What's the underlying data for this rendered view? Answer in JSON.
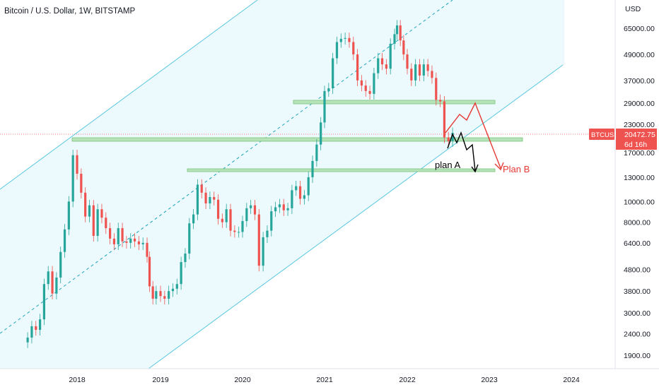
{
  "header": {
    "title": "Bitcoin / U.S. Dollar, 1W, BITSTAMP"
  },
  "colors": {
    "candle_up": "#26a69a",
    "candle_down": "#ef5350",
    "channel_line": "#5ac8e0",
    "channel_fill": "#eaf8fd",
    "zone_fill": "#b6e3b8",
    "zone_stroke": "#7cc47f",
    "plan_a": "#000000",
    "plan_b": "#e53935",
    "price_badge": "#ef5350",
    "price_line": "#ef5350"
  },
  "chart_data": {
    "type": "candlestick",
    "title": "Bitcoin / U.S. Dollar, 1W, BITSTAMP",
    "ylabel": "USD",
    "y_scale": "log",
    "y_ticks": [
      "65000.00",
      "49000.00",
      "37000.00",
      "29000.00",
      "23000.00",
      "17000.00",
      "13000.00",
      "10000.00",
      "8000.00",
      "6400.00",
      "4800.00",
      "3800.00",
      "3000.00",
      "2400.00",
      "1900.00"
    ],
    "x_ticks": [
      "2018",
      "2019",
      "2020",
      "2021",
      "2022",
      "2023",
      "2024"
    ],
    "x_range": [
      "2017-06",
      "2024-06"
    ],
    "y_range": [
      1600,
      80000
    ],
    "current_price": {
      "symbol": "BTCUSD",
      "value": "20472.75",
      "countdown": "6d 16h"
    },
    "series": [
      {
        "values": [
          [
            2017.4,
            2300
          ],
          [
            2017.45,
            2600
          ],
          [
            2017.5,
            2500
          ],
          [
            2017.55,
            2800
          ],
          [
            2017.6,
            4100
          ],
          [
            2017.65,
            4700
          ],
          [
            2017.7,
            3700
          ],
          [
            2017.75,
            4400
          ],
          [
            2017.8,
            5800
          ],
          [
            2017.85,
            7400
          ],
          [
            2017.9,
            10000
          ],
          [
            2017.95,
            16500
          ],
          [
            2018.0,
            13500
          ],
          [
            2018.05,
            11000
          ],
          [
            2018.1,
            8500
          ],
          [
            2018.15,
            9600
          ],
          [
            2018.2,
            6900
          ],
          [
            2018.25,
            9200
          ],
          [
            2018.3,
            8400
          ],
          [
            2018.35,
            7500
          ],
          [
            2018.4,
            6700
          ],
          [
            2018.45,
            6300
          ],
          [
            2018.5,
            7500
          ],
          [
            2018.55,
            6500
          ],
          [
            2018.6,
            6400
          ],
          [
            2018.65,
            6700
          ],
          [
            2018.7,
            6500
          ],
          [
            2018.75,
            6300
          ],
          [
            2018.8,
            6400
          ],
          [
            2018.85,
            5500
          ],
          [
            2018.88,
            4000
          ],
          [
            2018.92,
            3500
          ],
          [
            2018.96,
            3800
          ],
          [
            2019.0,
            3600
          ],
          [
            2019.05,
            3500
          ],
          [
            2019.1,
            3800
          ],
          [
            2019.15,
            3900
          ],
          [
            2019.2,
            4100
          ],
          [
            2019.25,
            5200
          ],
          [
            2019.3,
            5700
          ],
          [
            2019.35,
            7900
          ],
          [
            2019.4,
            8700
          ],
          [
            2019.45,
            12000
          ],
          [
            2019.5,
            11000
          ],
          [
            2019.55,
            9800
          ],
          [
            2019.6,
            10500
          ],
          [
            2019.65,
            10200
          ],
          [
            2019.7,
            8300
          ],
          [
            2019.75,
            8000
          ],
          [
            2019.8,
            9200
          ],
          [
            2019.85,
            7300
          ],
          [
            2019.9,
            7200
          ],
          [
            2019.95,
            7200
          ],
          [
            2020.0,
            8100
          ],
          [
            2020.05,
            9300
          ],
          [
            2020.1,
            9600
          ],
          [
            2020.15,
            8700
          ],
          [
            2020.2,
            5000
          ],
          [
            2020.25,
            6800
          ],
          [
            2020.3,
            7300
          ],
          [
            2020.35,
            9000
          ],
          [
            2020.4,
            9400
          ],
          [
            2020.45,
            9700
          ],
          [
            2020.5,
            9100
          ],
          [
            2020.55,
            9300
          ],
          [
            2020.6,
            11300
          ],
          [
            2020.65,
            11800
          ],
          [
            2020.7,
            10300
          ],
          [
            2020.75,
            10700
          ],
          [
            2020.8,
            13000
          ],
          [
            2020.85,
            15500
          ],
          [
            2020.9,
            18500
          ],
          [
            2020.95,
            23500
          ],
          [
            2021.0,
            33000
          ],
          [
            2021.05,
            34000
          ],
          [
            2021.1,
            47000
          ],
          [
            2021.15,
            56000
          ],
          [
            2021.2,
            58000
          ],
          [
            2021.25,
            58500
          ],
          [
            2021.3,
            56000
          ],
          [
            2021.35,
            49000
          ],
          [
            2021.4,
            37000
          ],
          [
            2021.45,
            35000
          ],
          [
            2021.5,
            33000
          ],
          [
            2021.55,
            32000
          ],
          [
            2021.6,
            40000
          ],
          [
            2021.65,
            47000
          ],
          [
            2021.7,
            44000
          ],
          [
            2021.75,
            42000
          ],
          [
            2021.8,
            55000
          ],
          [
            2021.85,
            61000
          ],
          [
            2021.88,
            67000
          ],
          [
            2021.92,
            57000
          ],
          [
            2021.96,
            49000
          ],
          [
            2022.0,
            42000
          ],
          [
            2022.05,
            37000
          ],
          [
            2022.1,
            44000
          ],
          [
            2022.15,
            39000
          ],
          [
            2022.2,
            44000
          ],
          [
            2022.25,
            41000
          ],
          [
            2022.3,
            38000
          ],
          [
            2022.35,
            30000
          ],
          [
            2022.4,
            29500
          ],
          [
            2022.45,
            20000
          ],
          [
            2022.5,
            19200
          ],
          [
            2022.55,
            21000
          ]
        ]
      }
    ],
    "annotations": {
      "plan_a_label": "plan A",
      "plan_b_label": "Plan B"
    }
  }
}
